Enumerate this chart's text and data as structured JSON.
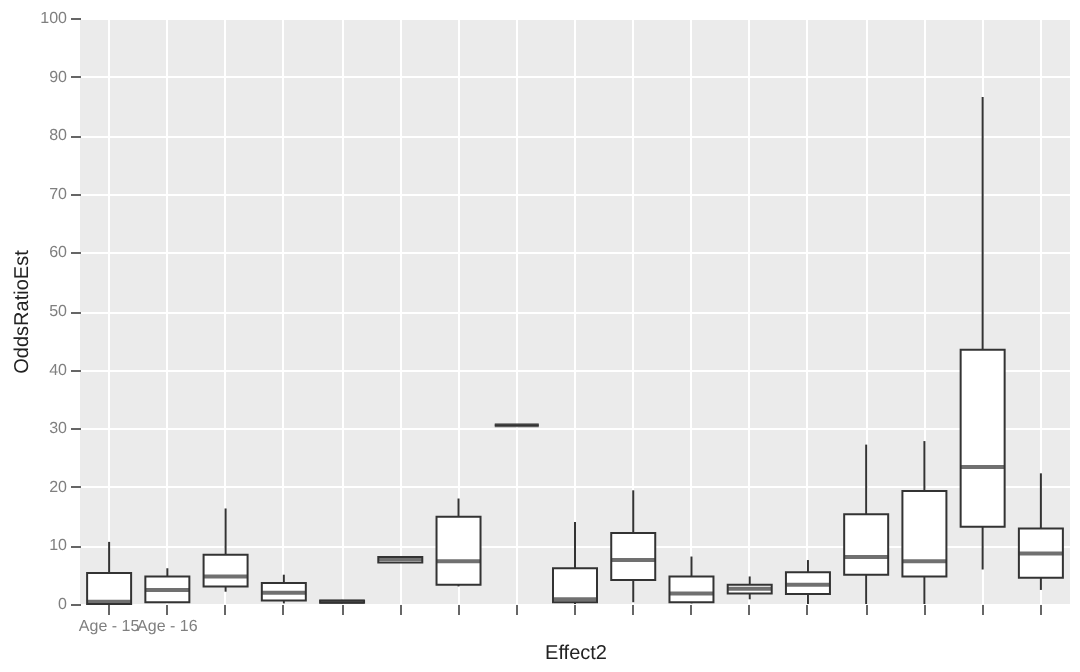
{
  "chart_data": {
    "type": "box",
    "xlabel": "Effect2",
    "ylabel": "OddsRatioEst",
    "categories": [
      "Age - 15",
      "Age - 16",
      null,
      null,
      null,
      null,
      null,
      null,
      null,
      null,
      null,
      null,
      null,
      null,
      null,
      null,
      null
    ],
    "boxes": [
      {
        "low": 0,
        "q1": 0,
        "median": 0.4,
        "q3": 5.3,
        "high": 10.6
      },
      {
        "low": 0.2,
        "q1": 0.3,
        "median": 2.4,
        "q3": 4.7,
        "high": 6.1
      },
      {
        "low": 2.1,
        "q1": 3.0,
        "median": 4.7,
        "q3": 8.4,
        "high": 16.3
      },
      {
        "low": 0.1,
        "q1": 0.6,
        "median": 1.9,
        "q3": 3.6,
        "high": 5.0
      },
      {
        "low": 0.1,
        "q1": 0.2,
        "median": 0.4,
        "q3": 0.6,
        "high": 0.7
      },
      {
        "low": 7.1,
        "q1": 7.1,
        "median": 7.7,
        "q3": 8.0,
        "high": 8.0
      },
      {
        "low": 3.0,
        "q1": 3.3,
        "median": 7.3,
        "q3": 14.9,
        "high": 18.0
      },
      {
        "low": 30.5,
        "q1": 30.5,
        "median": 30.5,
        "q3": 30.5,
        "high": 30.5
      },
      {
        "low": 0,
        "q1": 0.3,
        "median": 0.8,
        "q3": 6.1,
        "high": 14.0
      },
      {
        "low": 0.3,
        "q1": 4.1,
        "median": 7.5,
        "q3": 12.1,
        "high": 19.4
      },
      {
        "low": 0.1,
        "q1": 0.3,
        "median": 1.8,
        "q3": 4.7,
        "high": 8.1
      },
      {
        "low": 0.8,
        "q1": 1.8,
        "median": 2.6,
        "q3": 3.3,
        "high": 4.7
      },
      {
        "low": 0,
        "q1": 1.7,
        "median": 3.3,
        "q3": 5.4,
        "high": 7.5
      },
      {
        "low": 0,
        "q1": 5.0,
        "median": 8.0,
        "q3": 15.3,
        "high": 27.2
      },
      {
        "low": 0,
        "q1": 4.7,
        "median": 7.3,
        "q3": 19.3,
        "high": 27.8
      },
      {
        "low": 5.9,
        "q1": 13.2,
        "median": 23.4,
        "q3": 43.4,
        "high": 86.5
      },
      {
        "low": 2.4,
        "q1": 4.5,
        "median": 8.6,
        "q3": 12.9,
        "high": 22.3
      }
    ],
    "ylim": [
      0,
      100
    ],
    "yticks": [
      0,
      10,
      20,
      30,
      40,
      50,
      60,
      70,
      80,
      90,
      100
    ],
    "grid": true
  }
}
